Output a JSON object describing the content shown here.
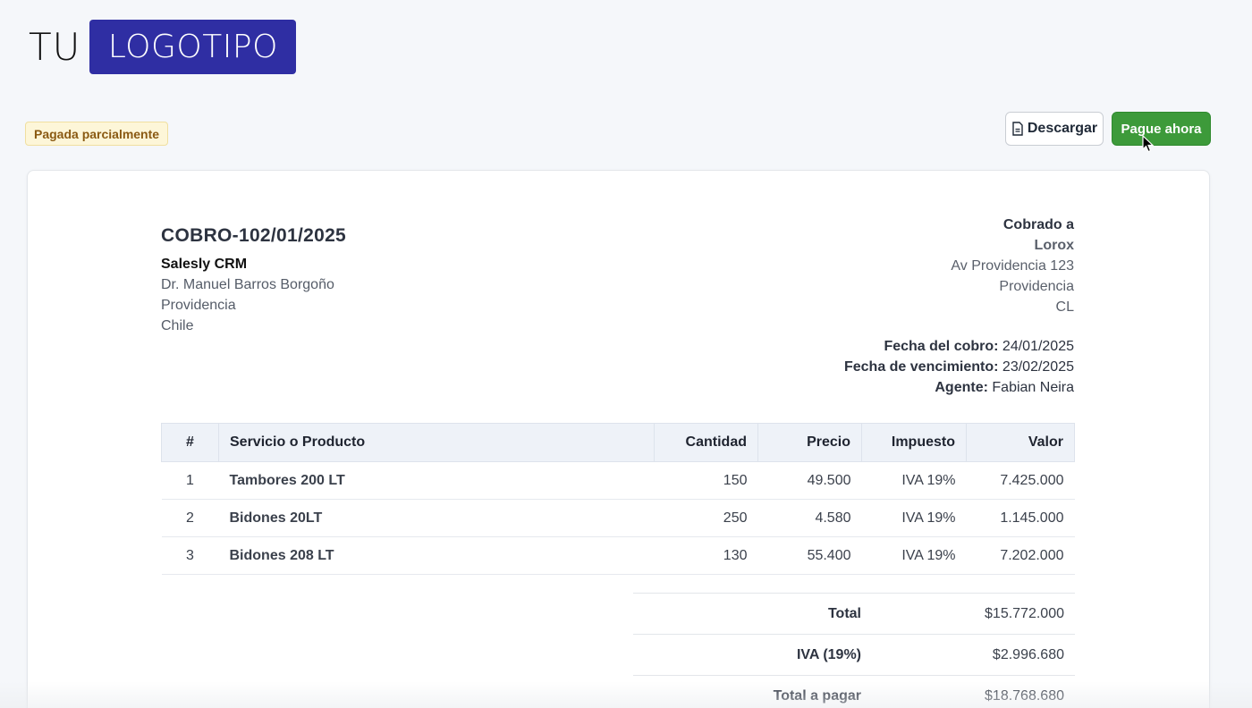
{
  "logo": {
    "prefix": "TU",
    "box_text": "LOGOTIPO",
    "box_color": "#2f2ea3"
  },
  "status": {
    "label": "Pagada parcialmente"
  },
  "actions": {
    "download_label": "Descargar",
    "pay_label": "Pague ahora",
    "pay_color": "#3d9a3a"
  },
  "invoice": {
    "number": "COBRO-102/01/2025",
    "company": {
      "name": "Salesly CRM",
      "lines": [
        "Dr. Manuel Barros Borgoño",
        "Providencia",
        "Chile"
      ]
    },
    "billed_to": {
      "heading": "Cobrado a",
      "name": "Lorox",
      "lines": [
        "Av Providencia 123",
        "Providencia",
        "CL"
      ]
    },
    "meta": [
      {
        "label": "Fecha del cobro:",
        "value": "24/01/2025"
      },
      {
        "label": "Fecha de vencimiento:",
        "value": "23/02/2025"
      },
      {
        "label": "Agente:",
        "value": "Fabian Neira"
      }
    ],
    "table": {
      "headers": [
        "#",
        "Servicio o Producto",
        "Cantidad",
        "Precio",
        "Impuesto",
        "Valor"
      ],
      "rows": [
        [
          "1",
          "Tambores 200 LT",
          "150",
          "49.500",
          "IVA 19%",
          "7.425.000"
        ],
        [
          "2",
          "Bidones 20LT",
          "250",
          "4.580",
          "IVA 19%",
          "1.145.000"
        ],
        [
          "3",
          "Bidones 208 LT",
          "130",
          "55.400",
          "IVA 19%",
          "7.202.000"
        ]
      ]
    },
    "totals": [
      {
        "label": "Total",
        "value": "$15.772.000"
      },
      {
        "label": "IVA (19%)",
        "value": "$2.996.680"
      },
      {
        "label": "Total a pagar",
        "value": "$18.768.680"
      }
    ]
  }
}
